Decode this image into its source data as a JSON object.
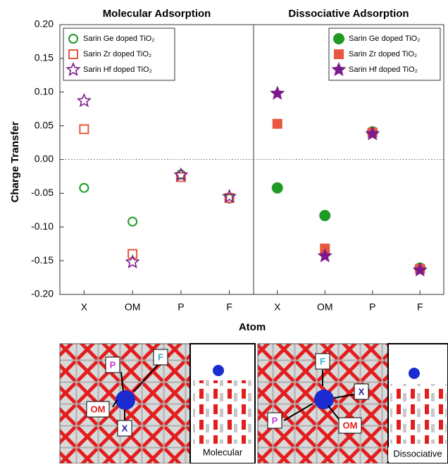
{
  "chart_data": [
    {
      "type": "scatter",
      "title": "Molecular Adsorption",
      "ylabel": "Charge Transfer",
      "xlabel": "Atom",
      "categories": [
        "X",
        "OM",
        "P",
        "F"
      ],
      "ylim": [
        -0.2,
        0.2
      ],
      "yticks": [
        {
          "value": -0.2,
          "label": "-0.20"
        },
        {
          "value": -0.15,
          "label": "-0.15"
        },
        {
          "value": -0.1,
          "label": "-0.10"
        },
        {
          "value": -0.05,
          "label": "-0.05"
        },
        {
          "value": 0,
          "label": "0.00"
        },
        {
          "value": 0.05,
          "label": "0.05"
        },
        {
          "value": 0.1,
          "label": "0.10"
        },
        {
          "value": 0.15,
          "label": "0.15"
        },
        {
          "value": 0.2,
          "label": "0.20"
        }
      ],
      "zero_line": true,
      "legend": "upper left",
      "series": [
        {
          "name": "Sarin Ge doped TiO₂",
          "color": "#1f9a24",
          "marker": "circle",
          "filled": false,
          "values": [
            -0.042,
            -0.092,
            -0.022,
            -0.058
          ]
        },
        {
          "name": "Sarin Zr doped TiO₂",
          "color": "#e8573f",
          "marker": "square",
          "filled": false,
          "values": [
            0.045,
            -0.14,
            -0.026,
            -0.057
          ]
        },
        {
          "name": "Sarin Hf doped TiO₂",
          "color": "#7b1a8a",
          "marker": "star",
          "filled": false,
          "values": [
            0.087,
            -0.152,
            -0.023,
            -0.055
          ]
        }
      ]
    },
    {
      "type": "scatter",
      "title": "Dissociative Adsorption",
      "categories": [
        "X",
        "OM",
        "P",
        "F"
      ],
      "ylim": [
        -0.2,
        0.2
      ],
      "zero_line": true,
      "legend": "upper right",
      "series": [
        {
          "name": "Sarin Ge doped TiO₂",
          "color": "#1f9a24",
          "marker": "circle",
          "filled": true,
          "values": [
            -0.042,
            -0.083,
            0.041,
            -0.161
          ]
        },
        {
          "name": "Sarin Zr doped TiO₂",
          "color": "#e8573f",
          "marker": "square",
          "filled": true,
          "values": [
            0.053,
            -0.132,
            0.04,
            -0.162
          ]
        },
        {
          "name": "Sarin Hf doped TiO₂",
          "color": "#7b1a8a",
          "marker": "star",
          "filled": true,
          "values": [
            0.098,
            -0.143,
            0.038,
            -0.164
          ]
        }
      ]
    }
  ],
  "structures": [
    {
      "labels": [
        "P",
        "F",
        "OM",
        "X"
      ],
      "caption": "Molecular"
    },
    {
      "labels": [
        "F",
        "X",
        "P",
        "OM"
      ],
      "caption": "Dissociative"
    }
  ]
}
